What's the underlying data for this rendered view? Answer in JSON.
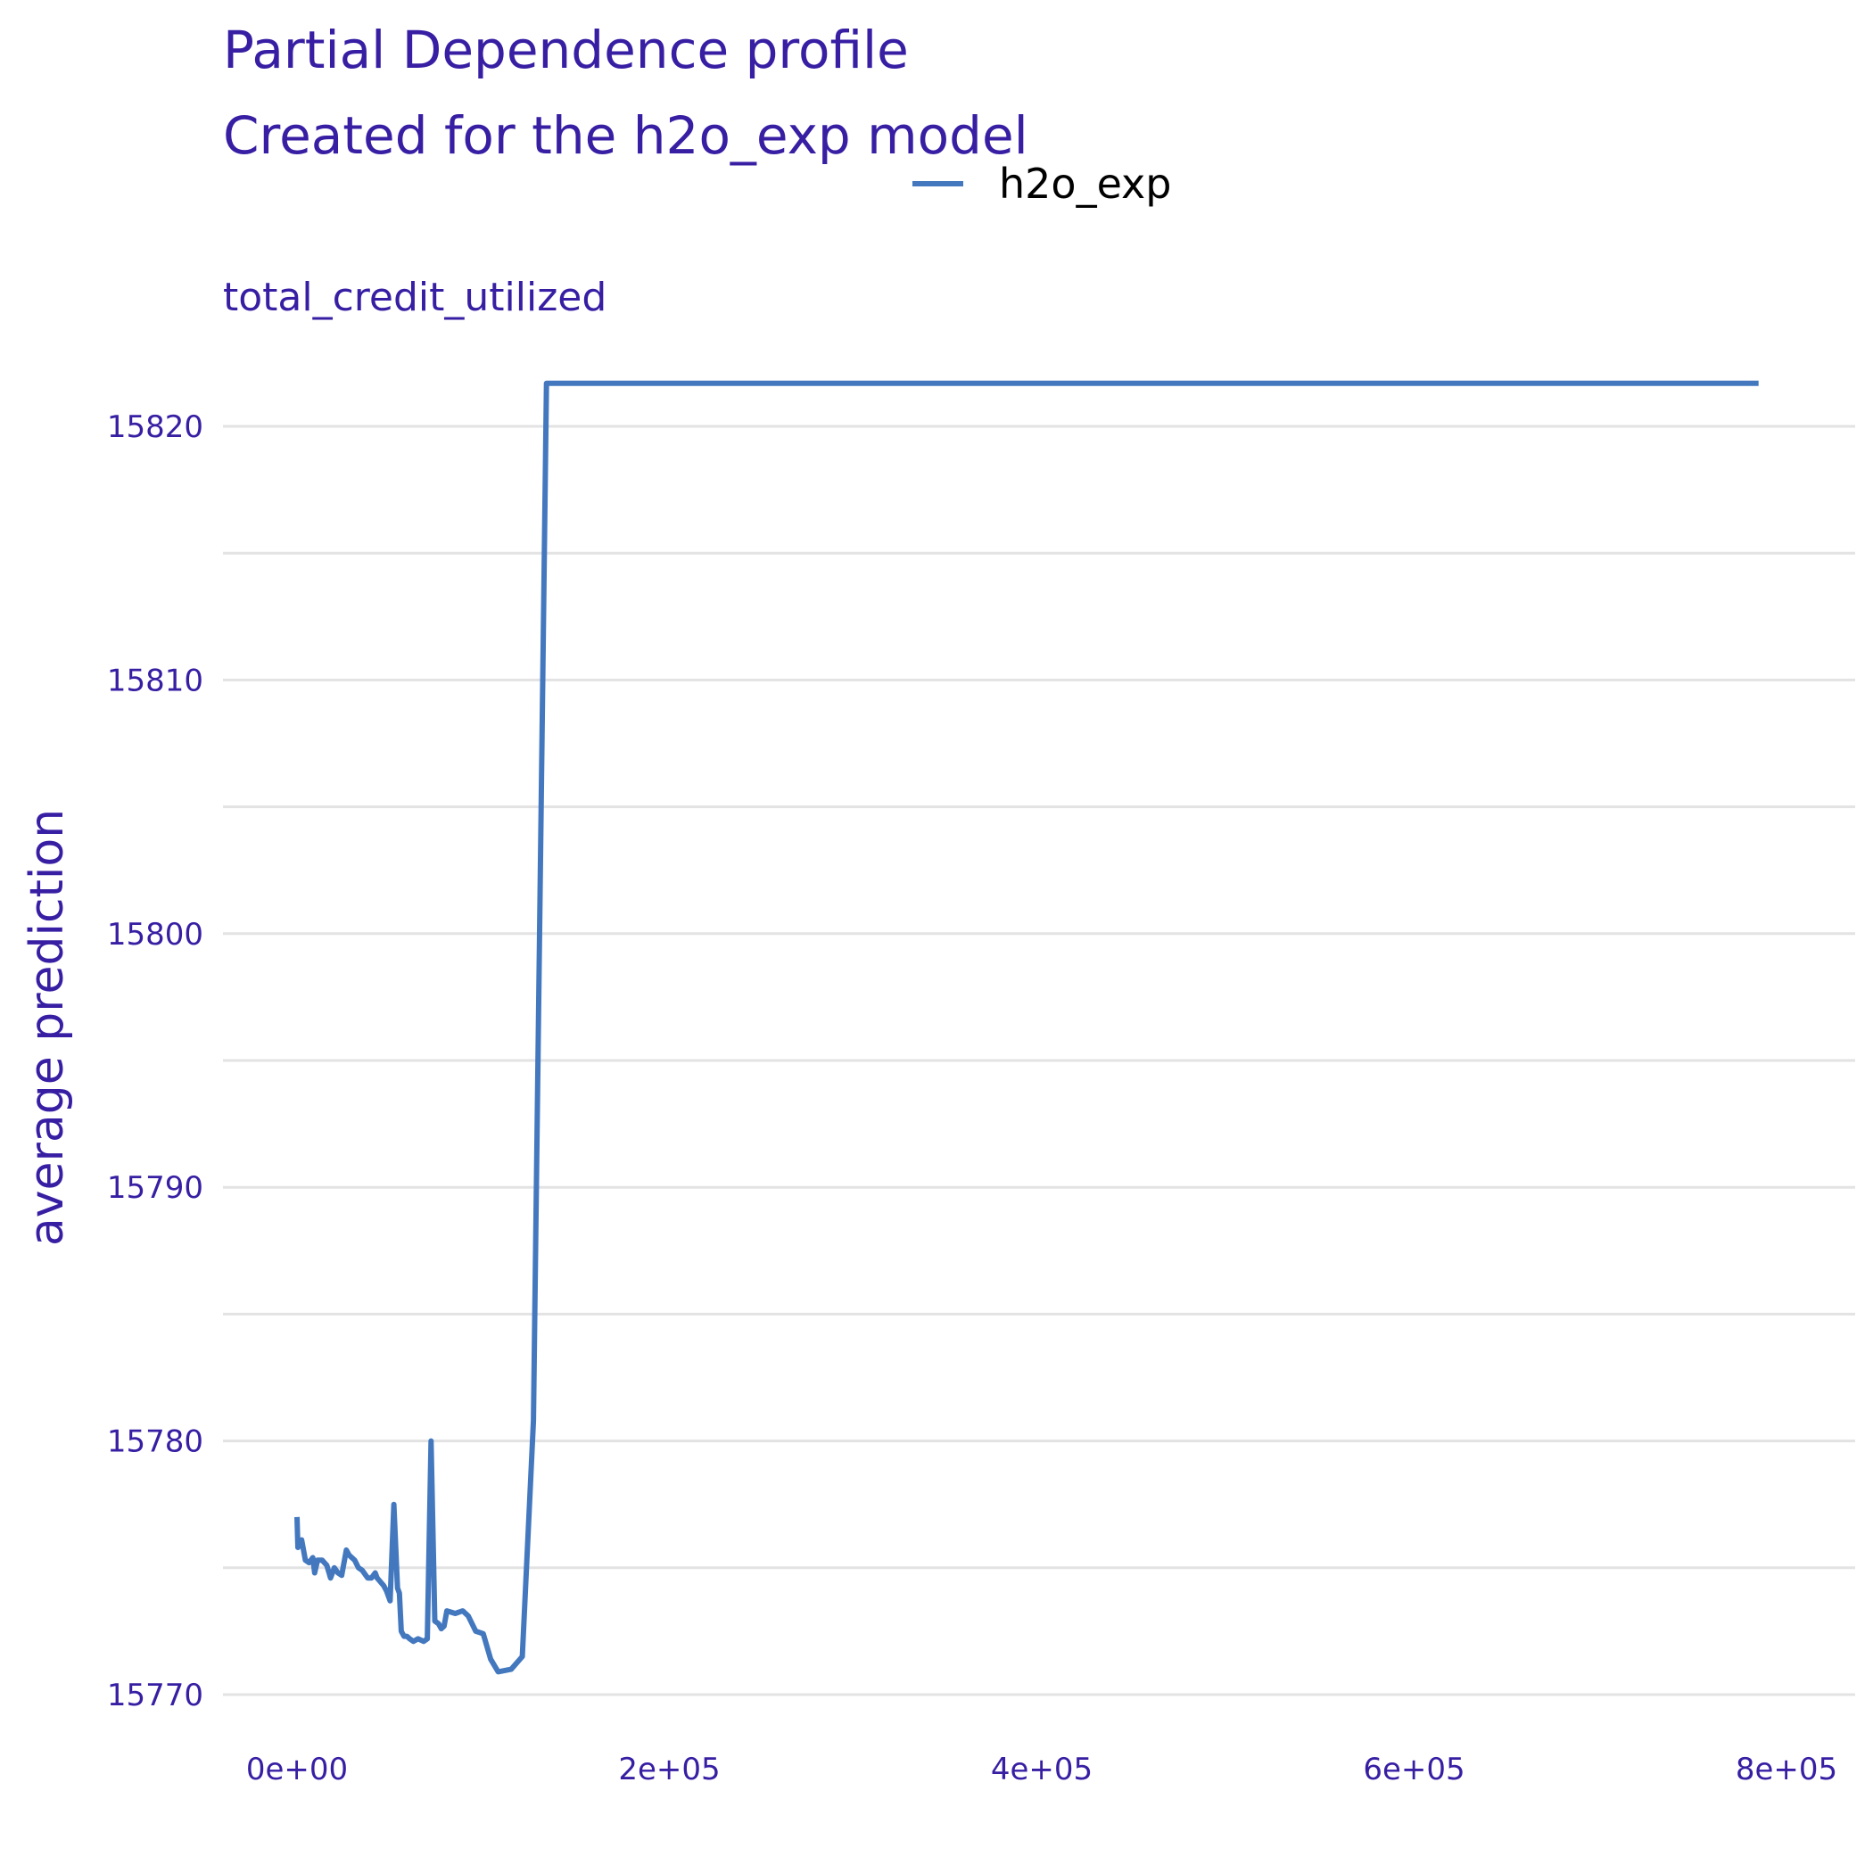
{
  "chart_data": {
    "type": "line",
    "title": "Partial Dependence profile",
    "subtitle": "Created for the h2o_exp model",
    "facet_label": "total_credit_utilized",
    "xlabel": "",
    "ylabel": "average prediction",
    "xlim": [
      -20000,
      810000
    ],
    "ylim": [
      15768,
      15822
    ],
    "x_ticks": [
      {
        "value": 0,
        "label": "0e+00"
      },
      {
        "value": 200000,
        "label": "2e+05"
      },
      {
        "value": 400000,
        "label": "4e+05"
      },
      {
        "value": 600000,
        "label": "6e+05"
      },
      {
        "value": 800000,
        "label": "8e+05"
      }
    ],
    "y_ticks": [
      {
        "value": 15770,
        "label": "15770"
      },
      {
        "value": 15780,
        "label": "15780"
      },
      {
        "value": 15790,
        "label": "15790"
      },
      {
        "value": 15800,
        "label": "15800"
      },
      {
        "value": 15810,
        "label": "15810"
      },
      {
        "value": 15820,
        "label": "15820"
      }
    ],
    "y_minor_grid": [
      15775,
      15785,
      15795,
      15805,
      15815
    ],
    "grid": "horizontal",
    "legend": {
      "position": "top",
      "entries": [
        "h2o_exp"
      ]
    },
    "series": [
      {
        "name": "h2o_exp",
        "color": "#4378bf",
        "x": [
          0,
          500,
          2500,
          4500,
          6500,
          8500,
          9500,
          11000,
          13500,
          16000,
          18000,
          20000,
          22000,
          24000,
          26500,
          28000,
          31000,
          33000,
          35000,
          38000,
          40000,
          42000,
          43000,
          46500,
          48000,
          50000,
          52000,
          54000,
          55000,
          56000,
          57500,
          59000,
          60500,
          62500,
          65000,
          68000,
          70000,
          72000,
          74000,
          76000,
          77500,
          79000,
          80500,
          85000,
          89000,
          92000,
          96000,
          100000,
          104000,
          108000,
          115000,
          121000,
          127000,
          134000,
          149000,
          166000,
          178000,
          200000,
          264000,
          785000
        ],
        "values": [
          15777.0,
          15775.8,
          15776.1,
          15775.3,
          15775.2,
          15775.4,
          15774.8,
          15775.3,
          15775.3,
          15775.1,
          15774.6,
          15775.0,
          15774.8,
          15774.7,
          15775.7,
          15775.5,
          15775.3,
          15775.0,
          15774.9,
          15774.6,
          15774.6,
          15774.8,
          15774.6,
          15774.3,
          15774.1,
          15773.7,
          15777.5,
          15774.2,
          15774.0,
          15772.5,
          15772.3,
          15772.3,
          15772.2,
          15772.1,
          15772.2,
          15772.1,
          15772.2,
          15780.0,
          15772.9,
          15772.8,
          15772.6,
          15772.7,
          15773.3,
          15773.2,
          15773.3,
          15773.1,
          15772.5,
          15772.4,
          15771.4,
          15770.9,
          15771.0,
          15771.5,
          15780.8,
          15821.7,
          15821.7,
          15821.7,
          15821.7,
          15821.7,
          15821.7,
          15821.7
        ]
      }
    ]
  }
}
